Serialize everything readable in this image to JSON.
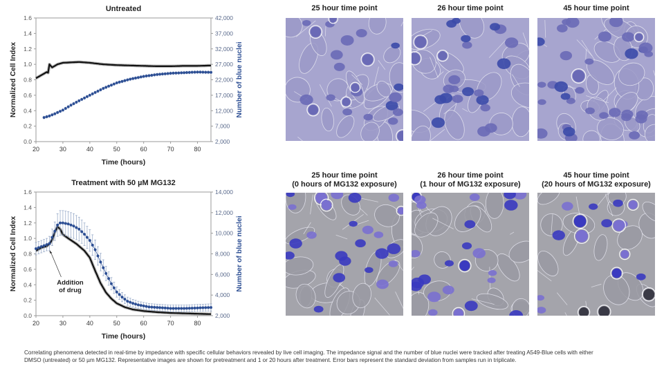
{
  "chart_data": [
    {
      "type": "line",
      "title": "Untreated",
      "xlabel": "Time (hours)",
      "ylabel": "Normalized Cell Index",
      "y2label": "Number of blue nuclei",
      "xlim": [
        20,
        85
      ],
      "ylim": [
        0.0,
        1.6
      ],
      "y2lim": [
        2000,
        42000
      ],
      "xticks": [
        "20",
        "30",
        "40",
        "50",
        "60",
        "70",
        "80"
      ],
      "yticks": [
        "0.0",
        "0.2",
        "0.4",
        "0.6",
        "0.8",
        "1.0",
        "1.2",
        "1.4",
        "1.6"
      ],
      "y2ticks": [
        "2,000",
        "7,000",
        "12,000",
        "17,000",
        "22,000",
        "27,000",
        "32,000",
        "37,000",
        "42,000"
      ],
      "grid": false,
      "series": [
        {
          "name": "Normalized Cell Index",
          "axis": "left",
          "color": "#111111",
          "x": [
            20,
            22,
            24,
            24.5,
            25,
            26,
            28,
            30,
            33,
            36,
            40,
            45,
            50,
            55,
            60,
            65,
            70,
            75,
            80,
            85
          ],
          "y": [
            0.82,
            0.86,
            0.9,
            0.89,
            1.0,
            0.96,
            1.0,
            1.02,
            1.025,
            1.03,
            1.02,
            1.0,
            0.99,
            0.985,
            0.98,
            0.975,
            0.975,
            0.98,
            0.98,
            0.985
          ]
        },
        {
          "name": "Number of blue nuclei",
          "axis": "right",
          "color": "#2d4f94",
          "x": [
            23,
            25,
            27,
            30,
            33,
            36,
            40,
            45,
            50,
            55,
            60,
            65,
            70,
            75,
            80,
            85
          ],
          "y": [
            9800,
            10300,
            11000,
            12200,
            13800,
            15200,
            17000,
            19200,
            21000,
            22200,
            23100,
            23700,
            24100,
            24300,
            24500,
            24400
          ]
        }
      ]
    },
    {
      "type": "line",
      "title": "Treatment with 50 µM MG132",
      "xlabel": "Time (hours)",
      "ylabel": "Normalized Cell Index",
      "y2label": "Number of blue nuclei",
      "annotation": "Addition of drug",
      "annotation_lines": [
        "Addition",
        "of drug"
      ],
      "annotation_x": 25,
      "xlim": [
        20,
        85
      ],
      "ylim": [
        0.0,
        1.6
      ],
      "y2lim": [
        2000,
        14000
      ],
      "xticks": [
        "20",
        "30",
        "40",
        "50",
        "60",
        "70",
        "80"
      ],
      "yticks": [
        "0.0",
        "0.2",
        "0.4",
        "0.6",
        "0.8",
        "1.0",
        "1.2",
        "1.4",
        "1.6"
      ],
      "y2ticks": [
        "2,000",
        "4,000",
        "6,000",
        "8,000",
        "10,000",
        "12,000",
        "14,000"
      ],
      "grid": false,
      "series": [
        {
          "name": "Normalized Cell Index",
          "axis": "left",
          "color": "#111111",
          "x": [
            20,
            22,
            24,
            25,
            26,
            27,
            28,
            29,
            30,
            32,
            35,
            38,
            40,
            42,
            44,
            46,
            48,
            50,
            53,
            56,
            60,
            65,
            70,
            75,
            80,
            85
          ],
          "y": [
            0.84,
            0.88,
            0.9,
            0.93,
            0.98,
            1.08,
            1.15,
            1.12,
            1.05,
            1.0,
            0.93,
            0.84,
            0.75,
            0.58,
            0.42,
            0.3,
            0.22,
            0.16,
            0.11,
            0.08,
            0.06,
            0.045,
            0.035,
            0.03,
            0.025,
            0.02
          ]
        },
        {
          "name": "Number of blue nuclei",
          "axis": "right",
          "color": "#2d4f94",
          "x": [
            20,
            22,
            24,
            25,
            26,
            27,
            28,
            29,
            30,
            32,
            34,
            36,
            38,
            40,
            42,
            44,
            46,
            48,
            50,
            52,
            54,
            56,
            58,
            60,
            62,
            65,
            68,
            70,
            75,
            80,
            85
          ],
          "y": [
            8500,
            8700,
            8900,
            9000,
            9600,
            10200,
            10800,
            11000,
            11000,
            10900,
            10700,
            10400,
            9900,
            9300,
            8400,
            7200,
            6100,
            5100,
            4300,
            3800,
            3400,
            3200,
            3050,
            2950,
            2850,
            2800,
            2750,
            2700,
            2700,
            2750,
            2800
          ],
          "error": [
            600,
            600,
            600,
            700,
            800,
            900,
            1100,
            1200,
            1200,
            1200,
            1200,
            1150,
            1100,
            1050,
            950,
            850,
            700,
            600,
            500,
            450,
            400,
            380,
            350,
            330,
            320,
            320,
            320,
            330,
            330,
            340,
            350
          ]
        }
      ]
    }
  ],
  "images": {
    "row1": [
      {
        "title": "25 hour time point"
      },
      {
        "title": "26 hour time point"
      },
      {
        "title": "45 hour time point"
      }
    ],
    "row2": [
      {
        "title_line1": "25 hour time point",
        "title_line2": "(0 hours of MG132 exposure)"
      },
      {
        "title_line1": "26 hour time point",
        "title_line2": "(1 hour of MG132 exposure)"
      },
      {
        "title_line1": "45 hour time point",
        "title_line2": "(20 hours of MG132 exposure)"
      }
    ]
  },
  "colors": {
    "nuclei_blue": "#2d4f94",
    "axis_right_tick": "#5a6a8c",
    "untreated_bg": "#a7a5cf",
    "treated_bg": "#a4a4ab"
  },
  "caption": {
    "line1": "Correlating phenomena detected in real-time by impedance with specific cellular behaviors revealed by live cell imaging. The impedance signal and the number of blue nuclei were tracked after treating A549-Blue cells with either",
    "line2": "DMSO (untreated) or 50 µm MG132. Representative images are shown for pretreatment and 1 or 20 hours after treatment. Error bars represent the standard deviation from samples run in triplicate."
  }
}
